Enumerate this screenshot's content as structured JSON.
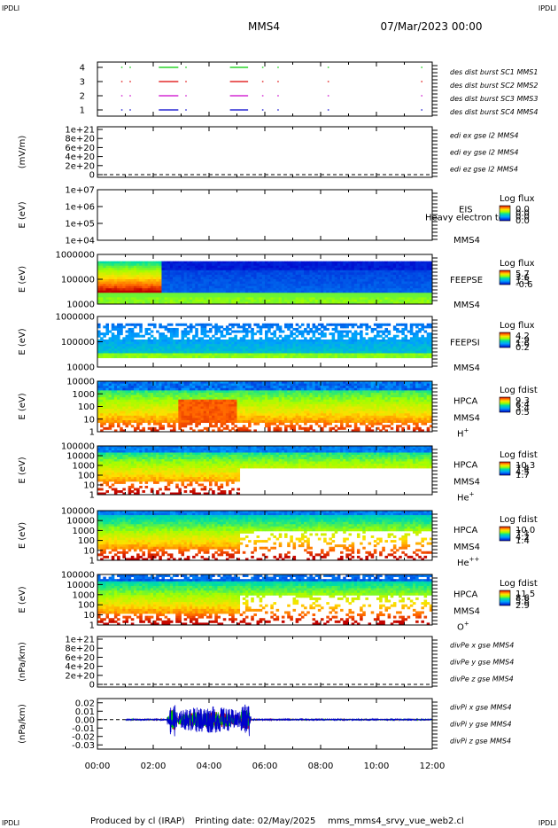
{
  "header": {
    "corner_left": "IPDLI",
    "corner_right": "IPDLI",
    "mission": "MMS4",
    "date": "07/Mar/2023 00:00"
  },
  "footer": {
    "corner_left": "IPDLI",
    "corner_right": "IPDLI",
    "produced_by": "Produced by cl (IRAP)",
    "printing_date": "Printing date: 02/May/2025",
    "script": "mms_mms4_srvy_vue_web2.cl"
  },
  "colors": {
    "blue": "#0000cc",
    "red": "#dd0000",
    "green": "#00cc00",
    "magenta": "#cc00cc"
  },
  "chart_data": [
    {
      "id": "burst",
      "type": "line",
      "ylabel": "",
      "yticks": [
        "4",
        "3",
        "2",
        "1"
      ],
      "series": [
        {
          "name": "des dist burst SC1 MMS1",
          "color": "#0000cc",
          "level": 1,
          "x_hours": [
            [
              0.85,
              0.9
            ],
            [
              1.15,
              1.2
            ],
            [
              2.2,
              2.9
            ],
            [
              3.15,
              3.2
            ],
            [
              4.75,
              5.4
            ],
            [
              5.9,
              5.95
            ],
            [
              6.45,
              6.5
            ],
            [
              8.25,
              8.3
            ],
            [
              11.6,
              11.65
            ]
          ]
        },
        {
          "name": "des dist burst SC2 MMS2",
          "color": "#cc00cc",
          "level": 2,
          "x_hours": [
            [
              0.85,
              0.9
            ],
            [
              1.15,
              1.2
            ],
            [
              2.2,
              2.9
            ],
            [
              3.15,
              3.2
            ],
            [
              4.75,
              5.4
            ],
            [
              5.9,
              5.95
            ],
            [
              6.45,
              6.5
            ],
            [
              8.25,
              8.3
            ],
            [
              11.6,
              11.65
            ]
          ]
        },
        {
          "name": "des dist burst SC3 MMS3",
          "color": "#dd0000",
          "level": 3,
          "x_hours": [
            [
              0.85,
              0.9
            ],
            [
              1.15,
              1.2
            ],
            [
              2.2,
              2.9
            ],
            [
              3.15,
              3.2
            ],
            [
              4.75,
              5.4
            ],
            [
              5.9,
              5.95
            ],
            [
              6.45,
              6.5
            ],
            [
              8.25,
              8.3
            ],
            [
              11.6,
              11.65
            ]
          ]
        },
        {
          "name": "des dist burst SC4 MMS4",
          "color": "#00cc00",
          "level": 4,
          "x_hours": [
            [
              0.85,
              0.9
            ],
            [
              1.15,
              1.2
            ],
            [
              2.2,
              2.9
            ],
            [
              3.15,
              3.2
            ],
            [
              4.75,
              5.4
            ],
            [
              5.9,
              5.95
            ],
            [
              6.45,
              6.5
            ],
            [
              8.25,
              8.3
            ],
            [
              11.6,
              11.65
            ]
          ]
        }
      ]
    },
    {
      "id": "edi",
      "type": "line",
      "ylabel": "(mV/m)",
      "yticks": [
        "1e+21",
        "8e+20",
        "6e+20",
        "4e+20",
        "2e+20",
        "0"
      ],
      "series": [
        {
          "name": "edi ex gse l2 MMS4",
          "color": "#dd0000",
          "values": []
        },
        {
          "name": "edi ey gse l2 MMS4",
          "color": "#00cc00",
          "values": []
        },
        {
          "name": "edi ez gse l2 MMS4",
          "color": "#0000cc",
          "values": []
        }
      ]
    },
    {
      "id": "eis",
      "type": "heatmap",
      "ylabel": "E (eV)",
      "yticks": [
        "1e+07",
        "1e+06",
        "1e+05",
        "1e+04"
      ],
      "instrument": "EIS",
      "spacecraft": "MMS4",
      "overlay_text": "Heavy electron to",
      "colorbar_title": "Log flux",
      "colorbar_ticks": [
        "0.0",
        "0.0",
        "0.0",
        "0.0"
      ]
    },
    {
      "id": "feepse",
      "type": "heatmap",
      "ylabel": "E (eV)",
      "yticks": [
        "1000000",
        "100000",
        "10000"
      ],
      "instrument": "FEEPSE",
      "spacecraft": "MMS4",
      "colorbar_title": "Log flux",
      "colorbar_ticks": [
        "5.7",
        "3.6",
        "1.5",
        "-0.6"
      ]
    },
    {
      "id": "feepsi",
      "type": "heatmap",
      "ylabel": "E (eV)",
      "yticks": [
        "1000000",
        "100000",
        "10000"
      ],
      "instrument": "FEEPSI",
      "spacecraft": "MMS4",
      "colorbar_title": "Log flux",
      "colorbar_ticks": [
        "4.2",
        "2.9",
        "1.6",
        "0.2"
      ]
    },
    {
      "id": "hpca_h",
      "type": "heatmap",
      "ylabel": "E (eV)",
      "yticks": [
        "10000",
        "1000",
        "100",
        "10",
        "1"
      ],
      "instrument": "HPCA",
      "spacecraft": "MMS4",
      "species": "H",
      "species_sup": "+",
      "colorbar_title": "Log fdist",
      "colorbar_ticks": [
        "9.3",
        "6.4",
        "3.4",
        "0.5"
      ]
    },
    {
      "id": "hpca_he",
      "type": "heatmap",
      "ylabel": "E (eV)",
      "yticks": [
        "100000",
        "10000",
        "1000",
        "100",
        "10",
        "1"
      ],
      "instrument": "HPCA",
      "spacecraft": "MMS4",
      "species": "He",
      "species_sup": "+",
      "colorbar_title": "Log fdist",
      "colorbar_ticks": [
        "10.3",
        "7.4",
        "4.5",
        "1.7"
      ]
    },
    {
      "id": "hpca_he2",
      "type": "heatmap",
      "ylabel": "E (eV)",
      "yticks": [
        "100000",
        "10000",
        "1000",
        "100",
        "10",
        "1"
      ],
      "instrument": "HPCA",
      "spacecraft": "MMS4",
      "species": "He",
      "species_sup": "++",
      "colorbar_title": "Log fdist",
      "colorbar_ticks": [
        "10.0",
        "7.1",
        "4.2",
        "1.4"
      ]
    },
    {
      "id": "hpca_o",
      "type": "heatmap",
      "ylabel": "E (eV)",
      "yticks": [
        "100000",
        "10000",
        "1000",
        "100",
        "10",
        "1"
      ],
      "instrument": "HPCA",
      "spacecraft": "MMS4",
      "species": "O",
      "species_sup": "+",
      "colorbar_title": "Log fdist",
      "colorbar_ticks": [
        "11.5",
        "8.6",
        "5.8",
        "2.9"
      ]
    },
    {
      "id": "divpe",
      "type": "line",
      "ylabel": "(nPa/km)",
      "yticks": [
        "1e+21",
        "8e+20",
        "6e+20",
        "4e+20",
        "2e+20",
        "0"
      ],
      "series": [
        {
          "name": "divPe x gse MMS4",
          "color": "#dd0000",
          "values": []
        },
        {
          "name": "divPe y gse MMS4",
          "color": "#00cc00",
          "values": []
        },
        {
          "name": "divPe z gse MMS4",
          "color": "#0000cc",
          "values": []
        }
      ]
    },
    {
      "id": "divpi",
      "type": "line",
      "ylabel": "(nPa/km)",
      "yticks": [
        "0.02",
        "0.01",
        "0.00",
        "-0.01",
        "-0.02",
        "-0.03"
      ],
      "ylim": [
        -0.035,
        0.025
      ],
      "series": [
        {
          "name": "divPi x gse MMS4",
          "color": "#dd0000"
        },
        {
          "name": "divPi y gse MMS4",
          "color": "#00cc00"
        },
        {
          "name": "divPi z gse MMS4",
          "color": "#0000cc"
        }
      ],
      "x_range_hours": [
        1.0,
        12.0
      ],
      "activity_peak_hours": [
        2.5,
        5.5
      ]
    }
  ],
  "xaxis": {
    "ticks": [
      "00:00",
      "02:00",
      "04:00",
      "06:00",
      "08:00",
      "10:00",
      "12:00"
    ],
    "range_hours": [
      0,
      12
    ]
  }
}
